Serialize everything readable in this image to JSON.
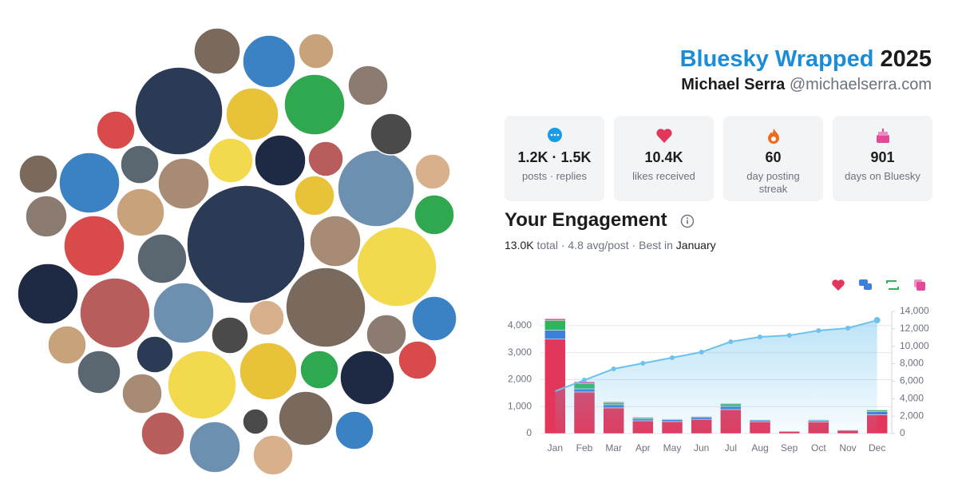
{
  "header": {
    "title": "Bluesky Wrapped",
    "year": "2025",
    "name": "Michael Serra",
    "handle": "@michaelserra.com"
  },
  "stats": [
    {
      "value": "1.2K · 1.5K",
      "label": "posts · replies"
    },
    {
      "value": "10.4K",
      "label": "likes received"
    },
    {
      "value": "60",
      "label": "day posting streak"
    },
    {
      "value": "901",
      "label": "days on Bluesky"
    }
  ],
  "engagement": {
    "title": "Your Engagement",
    "total": "13.0K",
    "middle": "total · 4.8 avg/post · Best in",
    "best": "January"
  },
  "chart_data": {
    "type": "bar",
    "categories": [
      "Jan",
      "Feb",
      "Mar",
      "Apr",
      "May",
      "Jun",
      "Jul",
      "Aug",
      "Sep",
      "Oct",
      "Nov",
      "Dec"
    ],
    "stacked": true,
    "series": [
      {
        "color": "#e2375a",
        "values": [
          3500,
          1540,
          950,
          475,
          445,
          530,
          890,
          440,
          80,
          430,
          120,
          700
        ]
      },
      {
        "color": "#3d7fdb",
        "values": [
          330,
          120,
          120,
          80,
          70,
          70,
          120,
          60,
          5,
          60,
          20,
          120
        ]
      },
      {
        "color": "#2eb45a",
        "values": [
          370,
          200,
          80,
          40,
          30,
          30,
          90,
          20,
          5,
          30,
          10,
          50
        ]
      },
      {
        "color": "#e5489a",
        "values": [
          60,
          60,
          30,
          20,
          15,
          20,
          25,
          10,
          0,
          10,
          5,
          20
        ]
      },
      {
        "type": "line",
        "axis": "y2",
        "color": "#6cc2ee",
        "values": [
          4850,
          6130,
          7410,
          8050,
          8690,
          9330,
          10520,
          11070,
          11250,
          11800,
          12080,
          12990
        ]
      }
    ],
    "ylim": [
      0,
      4530
    ],
    "yticks": [
      0,
      {
        "value": 1000,
        "label": "1,000"
      },
      {
        "value": 2000,
        "label": "2,000"
      },
      {
        "value": 3000,
        "label": "3,000"
      },
      {
        "value": 4000,
        "label": "4,000"
      }
    ],
    "y2lim": [
      0,
      14000
    ],
    "y2ticks": [
      0,
      {
        "value": 2000,
        "label": "2,000"
      },
      {
        "value": 4000,
        "label": "4,000"
      },
      {
        "value": 6000,
        "label": "6,000"
      },
      {
        "value": 8000,
        "label": "8,000"
      },
      {
        "value": 10000,
        "label": "10,000"
      },
      {
        "value": 12000,
        "label": "12,000"
      },
      {
        "value": 14000,
        "label": "14,000"
      }
    ],
    "grid": true
  }
}
